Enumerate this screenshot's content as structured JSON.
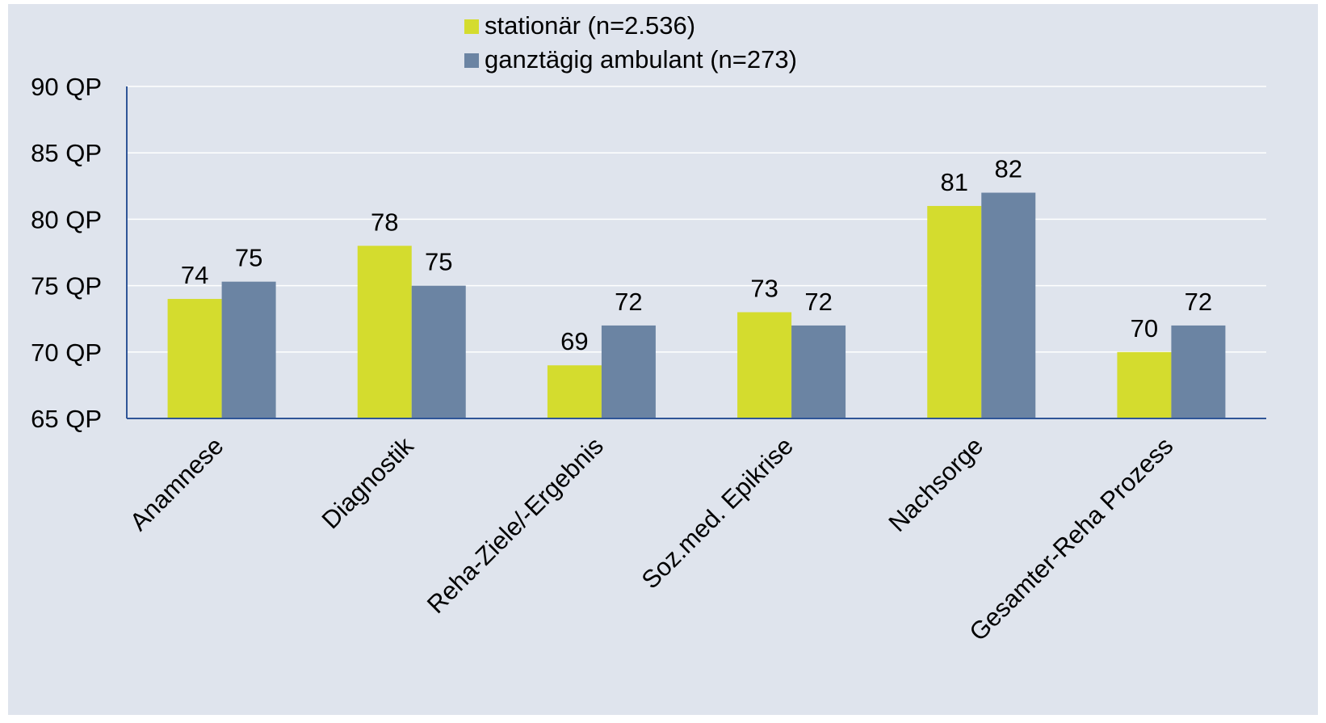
{
  "chart_data": {
    "type": "bar",
    "categories": [
      "Anamnese",
      "Diagnostik",
      "Reha-Ziele/-Ergebnis",
      "Soz.med. Epikrise",
      "Nachsorge",
      "Gesamter-Reha Prozess"
    ],
    "series": [
      {
        "name": "stationär (n=2.536)",
        "values": [
          74,
          78,
          69,
          73,
          81,
          70
        ],
        "labels": [
          "74",
          "78",
          "69",
          "73",
          "81",
          "70"
        ],
        "color": "#d4dc2e"
      },
      {
        "name": "ganztägig ambulant (n=273)",
        "values": [
          75.3,
          75,
          72,
          72,
          82,
          72
        ],
        "labels": [
          "75",
          "75",
          "72",
          "72",
          "82",
          "72"
        ],
        "color": "#6b84a3"
      }
    ],
    "ylim": [
      65,
      90
    ],
    "yticks": [
      65,
      70,
      75,
      80,
      85,
      90
    ],
    "ytick_labels": [
      "65 QP",
      "70 QP",
      "75 QP",
      "80 QP",
      "85 QP",
      "90 QP"
    ],
    "grid": true,
    "legend_position": "top-center",
    "background": "#dfe4ed",
    "axis_color": "#2f5597"
  }
}
